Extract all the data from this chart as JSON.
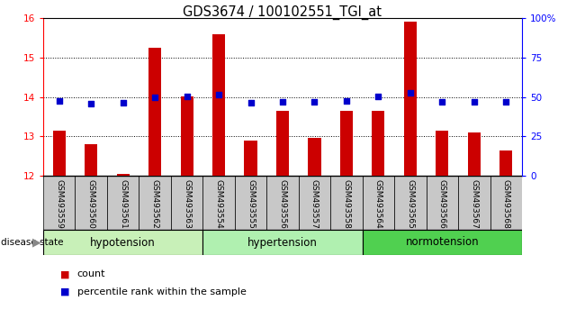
{
  "title": "GDS3674 / 100102551_TGI_at",
  "samples": [
    "GSM493559",
    "GSM493560",
    "GSM493561",
    "GSM493562",
    "GSM493563",
    "GSM493554",
    "GSM493555",
    "GSM493556",
    "GSM493557",
    "GSM493558",
    "GSM493564",
    "GSM493565",
    "GSM493566",
    "GSM493567",
    "GSM493568"
  ],
  "counts": [
    13.15,
    12.8,
    12.05,
    15.25,
    14.02,
    15.6,
    12.88,
    13.65,
    12.95,
    13.65,
    13.65,
    15.9,
    13.15,
    13.1,
    12.65
  ],
  "percentiles": [
    13.9,
    13.82,
    13.85,
    14.0,
    14.02,
    14.05,
    13.85,
    13.88,
    13.88,
    13.9,
    14.02,
    14.1,
    13.88,
    13.88,
    13.88
  ],
  "groups": [
    {
      "label": "hypotension",
      "start": 0,
      "end": 5
    },
    {
      "label": "hypertension",
      "start": 5,
      "end": 10
    },
    {
      "label": "normotension",
      "start": 10,
      "end": 15
    }
  ],
  "group_colors": [
    "#c8f0b8",
    "#b0f0b0",
    "#50d050"
  ],
  "ylim_left": [
    12,
    16
  ],
  "ylim_right": [
    0,
    100
  ],
  "yticks_left": [
    12,
    13,
    14,
    15,
    16
  ],
  "yticks_right": [
    0,
    25,
    50,
    75,
    100
  ],
  "bar_color": "#CC0000",
  "dot_color": "#0000CC",
  "sample_box_color": "#c8c8c8",
  "tick_fontsize": 7.5,
  "sample_fontsize": 6.5,
  "group_fontsize": 8.5,
  "legend_fontsize": 8,
  "title_fontsize": 10.5
}
